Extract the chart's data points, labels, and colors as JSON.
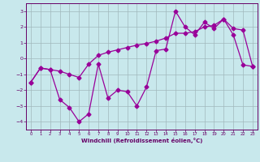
{
  "line1_x": [
    0,
    1,
    2,
    3,
    4,
    5,
    6,
    7,
    8,
    9,
    10,
    11,
    12,
    13,
    14,
    15,
    16,
    17,
    18,
    19,
    20,
    21,
    22,
    23
  ],
  "line1_y": [
    -1.5,
    -0.6,
    -0.7,
    -2.6,
    -3.1,
    -4.0,
    -3.5,
    -0.35,
    -2.5,
    -2.0,
    -2.1,
    -3.0,
    -1.8,
    0.5,
    0.6,
    3.0,
    2.0,
    1.5,
    2.3,
    1.9,
    2.5,
    1.5,
    -0.4,
    -0.5
  ],
  "line2_x": [
    0,
    1,
    2,
    3,
    4,
    5,
    6,
    7,
    8,
    9,
    10,
    11,
    12,
    13,
    14,
    15,
    16,
    17,
    18,
    19,
    20,
    21,
    22,
    23
  ],
  "line2_y": [
    -1.5,
    -0.6,
    -0.7,
    -0.8,
    -1.0,
    -1.2,
    -0.35,
    0.2,
    0.4,
    0.55,
    0.7,
    0.85,
    0.95,
    1.1,
    1.3,
    1.6,
    1.6,
    1.7,
    2.0,
    2.1,
    2.5,
    1.9,
    1.8,
    -0.5
  ],
  "line_color": "#990099",
  "marker": "D",
  "markersize": 2.5,
  "linewidth": 0.9,
  "bg_color": "#c8e8ec",
  "grid_color": "#a0b8bc",
  "xlabel": "Windchill (Refroidissement éolien,°C)",
  "ylim": [
    -4.5,
    3.5
  ],
  "xlim": [
    -0.5,
    23.5
  ],
  "yticks": [
    -4,
    -3,
    -2,
    -1,
    0,
    1,
    2,
    3
  ],
  "xticks": [
    0,
    1,
    2,
    3,
    4,
    5,
    6,
    7,
    8,
    9,
    10,
    11,
    12,
    13,
    14,
    15,
    16,
    17,
    18,
    19,
    20,
    21,
    22,
    23
  ],
  "label_color": "#660066",
  "tick_color": "#660066",
  "spine_color": "#660066"
}
